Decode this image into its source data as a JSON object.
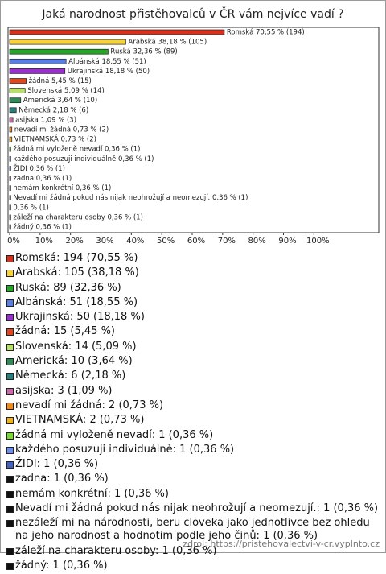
{
  "chart_data": {
    "type": "bar",
    "orientation": "horizontal",
    "title": "Jaká narodnost přistěhovalců v ČR vám nejvíce vadí ?",
    "categories": [
      "Romská",
      "Arabská",
      "Ruská",
      "Albánská",
      "Ukrajinská",
      "žádná",
      "Slovenská",
      "Americká",
      "Německá",
      "asijska",
      "nevadí mi žádná",
      "VIETNAMSKÁ",
      "žádná mi vyloženě nevadí",
      "každého posuzuji individuálně",
      "ŽIDI",
      "zadna",
      "nemám konkrétní",
      "Nevadí mi žádná pokud nás nijak neohrožují a neomezují.",
      "nezáleží mi na národnosti, beru cloveka jako jednotlivce bez ohledu na jeho narodnost a hodnotim podle jeho činů",
      "záleží na charakteru osoby",
      "žádný"
    ],
    "values": [
      70.55,
      38.18,
      32.36,
      18.55,
      18.18,
      5.45,
      5.09,
      3.64,
      2.18,
      1.09,
      0.73,
      0.73,
      0.36,
      0.36,
      0.36,
      0.36,
      0.36,
      0.36,
      0.36,
      0.36,
      0.36
    ],
    "value_labels": [
      "Romská 70,55 % (194)",
      "Arabská 38,18 % (105)",
      "Ruská 32,36 % (89)",
      "Albánská 18,55 % (51)",
      "Ukrajinská 18,18 % (50)",
      "žádná 5,45 % (15)",
      "Slovenská 5,09 % (14)",
      "Americká 3,64 % (10)",
      "Německá 2,18 % (6)",
      "asijska 1,09 % (3)",
      "nevadí mi žádná 0,73 % (2)",
      "VIETNAMSKÁ 0,73 % (2)",
      "žádná mi vyloženě nevadí 0,36 % (1)",
      "každého posuzuji individuálně 0,36 % (1)",
      "ŽIDI 0,36 % (1)",
      "zadna 0,36 % (1)",
      "nemám konkrétní 0,36 % (1)",
      "Nevadí mi žádná pokud nás nijak neohrožují a neomezují. 0,36 % (1)",
      "0,36 % (1)",
      "záleží na charakteru osoby 0,36 % (1)",
      "žádný 0,36 % (1)"
    ],
    "legend_labels": [
      "Romská: 194 (70,55 %)",
      "Arabská: 105 (38,18 %)",
      "Ruská: 89 (32,36 %)",
      "Albánská: 51 (18,55 %)",
      "Ukrajinská: 50 (18,18 %)",
      "žádná: 15 (5,45 %)",
      "Slovenská: 14 (5,09 %)",
      "Americká: 10 (3,64 %)",
      "Německá: 6 (2,18 %)",
      "asijska: 3 (1,09 %)",
      "nevadí mi žádná: 2 (0,73 %)",
      "VIETNAMSKÁ: 2 (0,73 %)",
      "žádná mi vyloženě nevadí: 1 (0,36 %)",
      "každého posuzuji individuálně: 1 (0,36 %)",
      "ŽIDI: 1 (0,36 %)",
      "zadna: 1 (0,36 %)",
      "nemám konkrétní: 1 (0,36 %)",
      "Nevadí mi žádná pokud nás nijak neohrožují a neomezují.: 1 (0,36 %)",
      "nezáleží mi na národnosti, beru cloveka jako jednotlivce bez ohledu na jeho narodnost a hodnotim podle jeho činů: 1 (0,36 %)",
      "záleží na charakteru osoby: 1 (0,36 %)",
      "žádný: 1 (0,36 %)"
    ],
    "colors": [
      "#d9301c",
      "#f7d23a",
      "#22a822",
      "#5a7ee0",
      "#9a2fd0",
      "#e4451c",
      "#b6e068",
      "#2e8b57",
      "#2a7e7e",
      "#c96aa6",
      "#ef8a1e",
      "#f0b022",
      "#78d838",
      "#6e8eee",
      "#4262c2",
      "#111111",
      "#111111",
      "#111111",
      "#111111",
      "#111111",
      "#111111"
    ],
    "xlim": [
      0,
      120
    ],
    "xticks": [
      {
        "value": 0,
        "label": "0%"
      },
      {
        "value": 10,
        "label": "10%"
      },
      {
        "value": 20,
        "label": "20%"
      },
      {
        "value": 30,
        "label": "30%"
      },
      {
        "value": 40,
        "label": "40%"
      },
      {
        "value": 50,
        "label": "50%"
      },
      {
        "value": 60,
        "label": "60%"
      },
      {
        "value": 70,
        "label": "70%"
      },
      {
        "value": 80,
        "label": "80%"
      },
      {
        "value": 90,
        "label": "90%"
      },
      {
        "value": 100,
        "label": "100%"
      }
    ],
    "source": "zdroj: https://pristehovalectvi-v-cr.vyplnto.cz"
  }
}
